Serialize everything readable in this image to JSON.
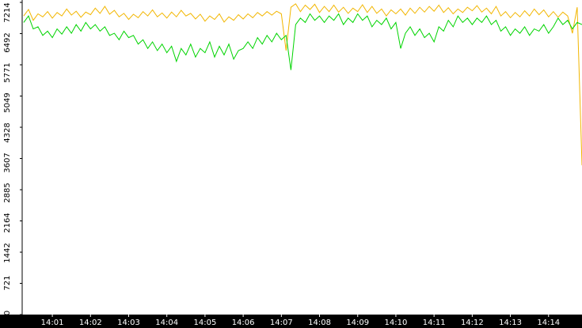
{
  "chart_data": {
    "type": "line",
    "x": [
      0.25,
      0.375,
      0.5,
      0.625,
      0.75,
      0.875,
      1.0,
      1.125,
      1.25,
      1.375,
      1.5,
      1.625,
      1.75,
      1.875,
      2.0,
      2.125,
      2.25,
      2.375,
      2.5,
      2.625,
      2.75,
      2.875,
      3.0,
      3.125,
      3.25,
      3.375,
      3.5,
      3.625,
      3.75,
      3.875,
      4.0,
      4.125,
      4.25,
      4.375,
      4.5,
      4.625,
      4.75,
      4.875,
      5.0,
      5.125,
      5.25,
      5.375,
      5.5,
      5.625,
      5.75,
      5.875,
      6.0,
      6.125,
      6.25,
      6.375,
      6.5,
      6.625,
      6.75,
      6.875,
      7.0,
      7.125,
      7.25,
      7.375,
      7.5,
      7.625,
      7.75,
      7.875,
      8.0,
      8.125,
      8.25,
      8.375,
      8.5,
      8.625,
      8.75,
      8.875,
      9.0,
      9.125,
      9.25,
      9.375,
      9.5,
      9.625,
      9.75,
      9.875,
      10.0,
      10.125,
      10.25,
      10.375,
      10.5,
      10.625,
      10.75,
      10.875,
      11.0,
      11.125,
      11.25,
      11.375,
      11.5,
      11.625,
      11.75,
      11.875,
      12.0,
      12.125,
      12.25,
      12.375,
      12.5,
      12.625,
      12.75,
      12.875,
      13.0,
      13.125,
      13.25,
      13.375,
      13.5,
      13.625,
      13.75,
      13.875,
      14.0,
      14.125,
      14.25,
      14.375,
      14.5,
      14.625,
      14.75,
      14.875
    ],
    "series": [
      {
        "color": "#f2b600",
        "values": [
          6900,
          7050,
          6800,
          6950,
          6880,
          7000,
          6850,
          6980,
          6900,
          7060,
          6920,
          7010,
          6870,
          6990,
          6930,
          7080,
          6960,
          7120,
          6940,
          7030,
          6880,
          6960,
          6820,
          6940,
          6860,
          7000,
          6900,
          7040,
          6880,
          6970,
          6850,
          6990,
          6880,
          7030,
          6900,
          6960,
          6830,
          6940,
          6780,
          6900,
          6820,
          6950,
          6760,
          6880,
          6800,
          6930,
          6830,
          6950,
          6860,
          6980,
          6900,
          7000,
          6920,
          7010,
          6950,
          6100,
          7100,
          7180,
          7000,
          7150,
          7050,
          7170,
          6980,
          7120,
          7000,
          7150,
          6990,
          7100,
          6960,
          7080,
          7000,
          7160,
          6980,
          7120,
          6960,
          7060,
          6900,
          7040,
          6950,
          7060,
          6920,
          7080,
          6960,
          7100,
          6990,
          7120,
          7010,
          7150,
          6980,
          7090,
          6950,
          7060,
          6980,
          7100,
          7020,
          7140,
          6990,
          7080,
          6950,
          7120,
          6900,
          7000,
          6860,
          6980,
          6880,
          7020,
          6900,
          7060,
          6930,
          7040,
          6880,
          7000,
          6870,
          6990,
          6900,
          6500,
          7100,
          3450
        ]
      },
      {
        "color": "#00d400",
        "values": [
          6750,
          6900,
          6600,
          6650,
          6450,
          6550,
          6400,
          6600,
          6480,
          6650,
          6500,
          6700,
          6550,
          6750,
          6600,
          6700,
          6550,
          6650,
          6450,
          6500,
          6350,
          6550,
          6400,
          6450,
          6250,
          6350,
          6150,
          6300,
          6100,
          6250,
          6050,
          6200,
          5850,
          6150,
          6000,
          6250,
          5950,
          6150,
          6050,
          6300,
          5950,
          6200,
          6000,
          6250,
          5900,
          6100,
          6150,
          6300,
          6150,
          6400,
          6250,
          6450,
          6300,
          6500,
          6350,
          6450,
          5650,
          6700,
          6850,
          6750,
          6950,
          6800,
          6900,
          6750,
          6900,
          6800,
          6950,
          6700,
          6850,
          6750,
          6950,
          6800,
          6900,
          6650,
          6800,
          6700,
          6850,
          6600,
          6750,
          6150,
          6500,
          6650,
          6450,
          6600,
          6400,
          6500,
          6300,
          6650,
          6550,
          6800,
          6650,
          6900,
          6750,
          6850,
          6700,
          6850,
          6750,
          6900,
          6700,
          6800,
          6550,
          6650,
          6450,
          6600,
          6500,
          6650,
          6450,
          6600,
          6550,
          6700,
          6500,
          6650,
          6850,
          6700,
          6800,
          6600,
          6750,
          6700
        ]
      }
    ],
    "xlim": [
      0.21,
      14.876
    ],
    "xticks": [
      {
        "value": 1,
        "label": "14:01"
      },
      {
        "value": 2,
        "label": "14:02"
      },
      {
        "value": 3,
        "label": "14:03"
      },
      {
        "value": 4,
        "label": "14:04"
      },
      {
        "value": 5,
        "label": "14:05"
      },
      {
        "value": 6,
        "label": "14:06"
      },
      {
        "value": 7,
        "label": "14:07"
      },
      {
        "value": 8,
        "label": "14:08"
      },
      {
        "value": 9,
        "label": "14:09"
      },
      {
        "value": 10,
        "label": "14:10"
      },
      {
        "value": 11,
        "label": "14:11"
      },
      {
        "value": 12,
        "label": "14:12"
      },
      {
        "value": 13,
        "label": "14:13"
      },
      {
        "value": 14,
        "label": "14:14"
      }
    ],
    "ylim": [
      0,
      7214
    ],
    "yticks": [
      0,
      721,
      1442,
      2164,
      2885,
      3607,
      4328,
      5049,
      5771,
      6492,
      7214
    ]
  }
}
